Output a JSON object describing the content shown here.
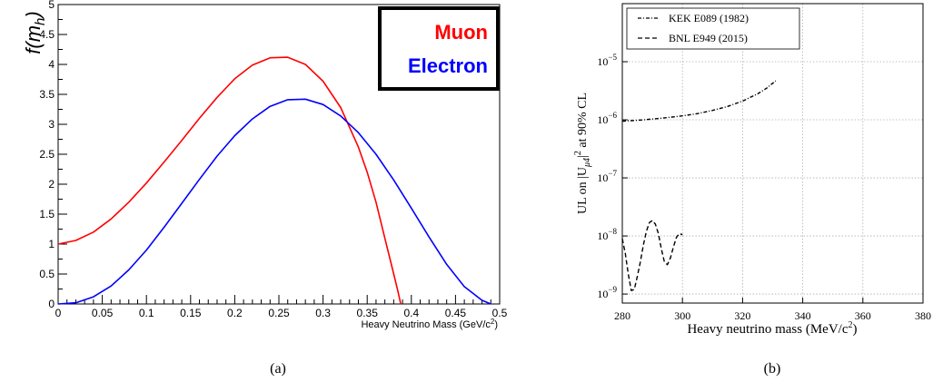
{
  "chart_data": [
    {
      "type": "line",
      "xlabel": "Heavy Neutrino Mass (GeV/c",
      "xlabel_sup": "2",
      "xlabel_tail": ")",
      "ylabel": "f(m",
      "ylabel_sub": "h",
      "ylabel_tail": ")",
      "xlim": [
        0,
        0.5
      ],
      "ylim": [
        0,
        5
      ],
      "xticks": [
        "0",
        "0.05",
        "0.1",
        "0.15",
        "0.2",
        "0.25",
        "0.3",
        "0.35",
        "0.4",
        "0.45",
        "0.5"
      ],
      "yticks": [
        "0",
        "0.5",
        "1",
        "1.5",
        "2",
        "2.5",
        "3",
        "3.5",
        "4",
        "4.5",
        "5"
      ],
      "grid": false,
      "legend_position": "top-right",
      "series": [
        {
          "name": "Muon",
          "color": "#ff0000",
          "x": [
            0,
            0.02,
            0.04,
            0.06,
            0.08,
            0.1,
            0.12,
            0.14,
            0.16,
            0.18,
            0.2,
            0.22,
            0.24,
            0.26,
            0.28,
            0.3,
            0.32,
            0.34,
            0.35,
            0.36,
            0.37,
            0.38,
            0.385,
            0.388
          ],
          "y": [
            1.0,
            1.06,
            1.2,
            1.42,
            1.7,
            2.02,
            2.37,
            2.73,
            3.1,
            3.45,
            3.76,
            3.99,
            4.11,
            4.12,
            4.0,
            3.72,
            3.28,
            2.62,
            2.2,
            1.7,
            1.1,
            0.5,
            0.2,
            0.0
          ]
        },
        {
          "name": "Electron",
          "color": "#0000ff",
          "x": [
            0,
            0.02,
            0.04,
            0.06,
            0.08,
            0.1,
            0.12,
            0.14,
            0.16,
            0.18,
            0.2,
            0.22,
            0.24,
            0.26,
            0.28,
            0.3,
            0.32,
            0.34,
            0.36,
            0.38,
            0.4,
            0.42,
            0.44,
            0.46,
            0.48,
            0.49
          ],
          "y": [
            0.0,
            0.02,
            0.12,
            0.3,
            0.57,
            0.9,
            1.28,
            1.68,
            2.08,
            2.47,
            2.81,
            3.09,
            3.3,
            3.41,
            3.42,
            3.33,
            3.14,
            2.86,
            2.5,
            2.07,
            1.6,
            1.12,
            0.66,
            0.29,
            0.06,
            0.0
          ]
        }
      ]
    },
    {
      "type": "line",
      "xlabel": "Heavy neutrino mass (MeV/c",
      "xlabel_sup": "2",
      "xlabel_tail": ")",
      "ylabel": "UL on |U",
      "ylabel_sub": "μ4",
      "ylabel_mid": "|",
      "ylabel_sup": "2",
      "ylabel_tail": " at 90% CL",
      "xlim": [
        280,
        380
      ],
      "ylim": [
        7e-10,
        0.0001
      ],
      "yscale": "log",
      "xticks": [
        "280",
        "300",
        "320",
        "340",
        "360",
        "380"
      ],
      "yticks": [
        {
          "base": "10",
          "exp": "−9",
          "value": 1e-09
        },
        {
          "base": "10",
          "exp": "−8",
          "value": 1e-08
        },
        {
          "base": "10",
          "exp": "−7",
          "value": 1e-07
        },
        {
          "base": "10",
          "exp": "−6",
          "value": 1e-06
        },
        {
          "base": "10",
          "exp": "−5",
          "value": 1e-05
        }
      ],
      "grid": true,
      "legend_position": "top-left",
      "series": [
        {
          "name": "KEK E089 (1982)",
          "style": "dash-dot",
          "x": [
            280,
            285,
            290,
            295,
            300,
            305,
            310,
            315,
            320,
            325,
            328,
            331
          ],
          "y": [
            9.5e-07,
            9.8e-07,
            1.03e-06,
            1.09e-06,
            1.17e-06,
            1.28e-06,
            1.45e-06,
            1.7e-06,
            2.1e-06,
            2.8e-06,
            3.5e-06,
            4.7e-06
          ]
        },
        {
          "name": "BNL E949 (2015)",
          "style": "dashed",
          "x": [
            280,
            281,
            282,
            283,
            284,
            285,
            286,
            287,
            288,
            289,
            290,
            291,
            292,
            293,
            294,
            295,
            296,
            297,
            298,
            299,
            300
          ],
          "y": [
            9e-09,
            5e-09,
            2.2e-09,
            1.15e-09,
            1.2e-09,
            2e-09,
            3.6e-09,
            7e-09,
            1.2e-08,
            1.7e-08,
            1.85e-08,
            1.6e-08,
            1.1e-08,
            6e-09,
            3.6e-09,
            3.2e-09,
            4.2e-09,
            6.5e-09,
            9.5e-09,
            1.1e-08,
            1.05e-08
          ]
        }
      ]
    }
  ],
  "captions": [
    "(a)",
    "(b)"
  ]
}
